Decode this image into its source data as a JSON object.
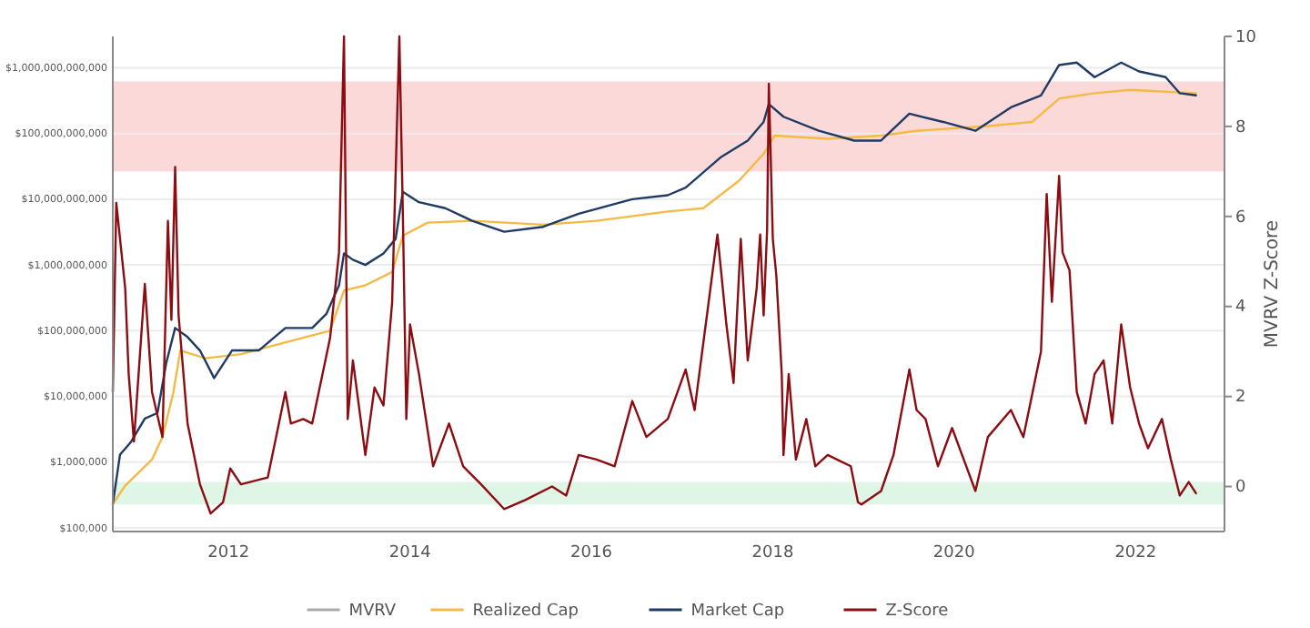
{
  "chart_data": {
    "type": "line",
    "y2label": "MVRV Z-Score",
    "log": "y",
    "grid": "y",
    "legend": "bottom",
    "xlim": [
      "2010-09-22",
      "2022-12-25"
    ],
    "xticks": [
      {
        "value": "2012-01-01",
        "label": "2012"
      },
      {
        "value": "2014-01-01",
        "label": "2014"
      },
      {
        "value": "2016-01-01",
        "label": "2016"
      },
      {
        "value": "2018-01-01",
        "label": "2018"
      },
      {
        "value": "2020-01-01",
        "label": "2020"
      },
      {
        "value": "2022-01-01",
        "label": "2022"
      }
    ],
    "ylim": [
      88000,
      3000000000000
    ],
    "yticks": [
      {
        "value": 100000,
        "label": "$100,000"
      },
      {
        "value": 1000000,
        "label": "$1,000,000"
      },
      {
        "value": 10000000,
        "label": "$10,000,000"
      },
      {
        "value": 100000000,
        "label": "$100,000,000"
      },
      {
        "value": 1000000000,
        "label": "$1,000,000,000"
      },
      {
        "value": 10000000000,
        "label": "$10,000,000,000"
      },
      {
        "value": 100000000000,
        "label": "$100,000,000,000"
      },
      {
        "value": 1000000000000,
        "label": "$1,000,000,000,000"
      }
    ],
    "y2lim": [
      -1,
      10
    ],
    "y2ticks": [
      0,
      2,
      4,
      6,
      8,
      10
    ],
    "bands": [
      {
        "axis": "y2",
        "from": 7,
        "to": 9,
        "color": "#fbd9d9"
      },
      {
        "axis": "y2",
        "from": -0.4,
        "to": 0.1,
        "color": "#dff5e6"
      }
    ],
    "series": [
      {
        "name": "MVRV",
        "color": "#aaaaaa"
      },
      {
        "name": "Realized Cap",
        "color": "#f5b945",
        "x": [
          "2010-09-22",
          "2010-11-11",
          "2011-02-27",
          "2011-04-10",
          "2011-05-23",
          "2011-06-21",
          "2011-09-29",
          "2012-02-20",
          "2012-09-22",
          "2013-02-13",
          "2013-04-10",
          "2013-07-05",
          "2013-10-21",
          "2013-12-03",
          "2014-03-13",
          "2014-09-08",
          "2015-06-21",
          "2016-01-22",
          "2016-11-04",
          "2017-03-27",
          "2017-08-17",
          "2017-11-25",
          "2018-01-08",
          "2018-08-10",
          "2019-03-13",
          "2019-08-03",
          "2020-05-16",
          "2020-11-11",
          "2021-02-27",
          "2021-07-20",
          "2021-12-10",
          "2022-09-01"
        ],
        "values": [
          230000,
          440000,
          1100000,
          2400000,
          11000000,
          50000000,
          38000000,
          44000000,
          72000000,
          100000000,
          410000000,
          490000000,
          780000000,
          2800000000,
          4400000000,
          4700000000,
          4100000000,
          4700000000,
          6500000000,
          7300000000,
          19000000000,
          49000000000,
          93000000000,
          83000000000,
          93000000000,
          110000000000,
          130000000000,
          150000000000,
          340000000000,
          410000000000,
          460000000000,
          410000000000
        ]
      },
      {
        "name": "Market Cap",
        "color": "#1f3b63",
        "x": [
          "2010-09-22",
          "2010-10-21",
          "2010-12-03",
          "2011-01-29",
          "2011-03-21",
          "2011-04-25",
          "2011-05-31",
          "2011-07-20",
          "2011-09-08",
          "2011-11-04",
          "2012-01-15",
          "2012-05-02",
          "2012-08-17",
          "2012-12-03",
          "2013-01-29",
          "2013-03-21",
          "2013-04-10",
          "2013-05-16",
          "2013-07-05",
          "2013-09-16",
          "2013-11-04",
          "2013-12-03",
          "2014-02-06",
          "2014-05-23",
          "2014-09-08",
          "2015-01-15",
          "2015-06-21",
          "2015-11-11",
          "2016-06-14",
          "2016-11-04",
          "2017-01-15",
          "2017-06-07",
          "2017-09-22",
          "2017-11-25",
          "2017-12-16",
          "2018-02-13",
          "2018-07-05",
          "2018-11-25",
          "2019-03-13",
          "2019-07-05",
          "2019-11-18",
          "2020-03-27",
          "2020-08-17",
          "2020-12-16",
          "2021-02-27",
          "2021-05-09",
          "2021-07-20",
          "2021-11-04",
          "2022-01-15",
          "2022-05-02",
          "2022-06-28",
          "2022-09-01"
        ],
        "values": [
          230000,
          1300000,
          2000000,
          4600000,
          5600000,
          32000000,
          110000000,
          80000000,
          50000000,
          19000000,
          50000000,
          50000000,
          110000000,
          110000000,
          180000000,
          490000000,
          1500000000,
          1200000000,
          1000000000,
          1500000000,
          2500000000,
          13000000000,
          9000000000,
          7300000000,
          4700000000,
          3200000000,
          3800000000,
          6000000000,
          10000000000,
          11500000000,
          15000000000,
          44000000000,
          78000000000,
          150000000000,
          280000000000,
          180000000000,
          110000000000,
          78000000000,
          78000000000,
          200000000000,
          150000000000,
          110000000000,
          250000000000,
          380000000000,
          1100000000000,
          1200000000000,
          720000000000,
          1200000000000,
          880000000000,
          720000000000,
          410000000000,
          380000000000
        ]
      },
      {
        "name": "Z-Score",
        "color": "#8b0d12",
        "axis": "y2",
        "x": [
          "2010-09-22",
          "2010-10-06",
          "2010-11-11",
          "2010-11-25",
          "2010-12-16",
          "2011-01-29",
          "2011-02-27",
          "2011-04-10",
          "2011-05-02",
          "2011-05-16",
          "2011-05-31",
          "2011-06-14",
          "2011-07-20",
          "2011-09-08",
          "2011-10-21",
          "2011-12-10",
          "2012-01-08",
          "2012-02-20",
          "2012-06-07",
          "2012-08-17",
          "2012-09-08",
          "2012-10-28",
          "2012-12-03",
          "2013-02-13",
          "2013-03-21",
          "2013-04-10",
          "2013-04-25",
          "2013-05-16",
          "2013-07-05",
          "2013-08-11",
          "2013-09-16",
          "2013-10-21",
          "2013-11-19",
          "2013-12-03",
          "2013-12-17",
          "2014-01-01",
          "2014-02-06",
          "2014-04-04",
          "2014-06-07",
          "2014-08-03",
          "2014-10-14",
          "2015-01-15",
          "2015-04-10",
          "2015-07-27",
          "2015-09-22",
          "2015-11-11",
          "2016-01-22",
          "2016-04-04",
          "2016-06-14",
          "2016-08-10",
          "2016-10-13",
          "2016-11-04",
          "2017-01-15",
          "2017-02-20",
          "2017-05-23",
          "2017-06-28",
          "2017-07-27",
          "2017-08-25",
          "2017-09-22",
          "2017-10-28",
          "2017-11-11",
          "2017-11-25",
          "2017-12-09",
          "2017-12-16",
          "2018-01-01",
          "2018-01-15",
          "2018-02-06",
          "2018-02-13",
          "2018-03-06",
          "2018-04-04",
          "2018-05-16",
          "2018-06-21",
          "2018-08-10",
          "2018-11-11",
          "2018-12-10",
          "2018-12-24",
          "2019-03-13",
          "2019-05-02",
          "2019-07-05",
          "2019-08-03",
          "2019-09-08",
          "2019-10-28",
          "2019-12-24",
          "2020-03-27",
          "2020-05-16",
          "2020-08-17",
          "2020-10-06",
          "2020-12-16",
          "2021-01-08",
          "2021-01-29",
          "2021-02-27",
          "2021-03-13",
          "2021-04-10",
          "2021-05-09",
          "2021-06-14",
          "2021-07-20",
          "2021-08-25",
          "2021-09-29",
          "2021-11-04",
          "2021-12-10",
          "2022-01-15",
          "2022-02-20",
          "2022-04-17",
          "2022-05-23",
          "2022-06-28",
          "2022-08-03",
          "2022-09-01"
        ],
        "values": [
          2.1,
          6.3,
          4.4,
          2.5,
          1.0,
          4.5,
          2.1,
          1.1,
          5.9,
          3.7,
          7.1,
          3.8,
          1.4,
          0.05,
          -0.6,
          -0.35,
          0.4,
          0.05,
          0.2,
          2.1,
          1.4,
          1.5,
          1.4,
          3.3,
          5.2,
          10.0,
          1.5,
          2.8,
          0.7,
          2.2,
          1.8,
          4.1,
          10.0,
          6.1,
          1.5,
          3.6,
          2.5,
          0.45,
          1.4,
          0.45,
          0.05,
          -0.5,
          -0.3,
          0,
          -0.2,
          0.7,
          0.6,
          0.45,
          1.9,
          1.1,
          1.4,
          1.5,
          2.6,
          1.7,
          5.6,
          3.6,
          2.3,
          5.5,
          2.8,
          4.4,
          5.6,
          3.8,
          5.7,
          8.95,
          5.5,
          4.7,
          2.5,
          0.7,
          2.5,
          0.6,
          1.5,
          0.45,
          0.7,
          0.45,
          -0.35,
          -0.4,
          -0.1,
          0.7,
          2.6,
          1.7,
          1.5,
          0.45,
          1.3,
          -0.1,
          1.1,
          1.7,
          1.1,
          3.0,
          6.5,
          4.1,
          6.9,
          5.2,
          4.8,
          2.1,
          1.4,
          2.5,
          2.8,
          1.4,
          3.6,
          2.2,
          1.4,
          0.85,
          1.5,
          0.6,
          -0.2,
          0.1,
          -0.15
        ]
      }
    ]
  }
}
